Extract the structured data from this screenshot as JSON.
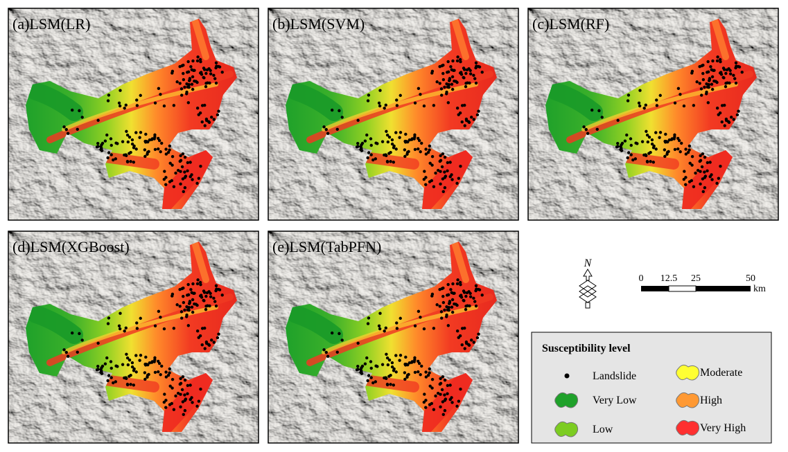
{
  "panels": [
    {
      "label": "(a)LSM(LR)"
    },
    {
      "label": "(b)LSM(SVM)"
    },
    {
      "label": "(c)LSM(RF)"
    },
    {
      "label": "(d)LSM(XGBoost)"
    },
    {
      "label": "(e)LSM(TabPFN)"
    }
  ],
  "north_arrow": {
    "label": "N"
  },
  "scale_bar": {
    "labels": [
      "0",
      "12.5",
      "25",
      "50"
    ],
    "unit": "km"
  },
  "legend": {
    "title": "Susceptibility level",
    "items": [
      {
        "label": "Landslide",
        "color": "#000000"
      },
      {
        "label": "Very Low",
        "color": "#1fa12a"
      },
      {
        "label": "Low",
        "color": "#7ccc21"
      },
      {
        "label": "Moderate",
        "color": "#ffff33"
      },
      {
        "label": "High",
        "color": "#ff9933"
      },
      {
        "label": "Very High",
        "color": "#ff3030"
      }
    ]
  }
}
